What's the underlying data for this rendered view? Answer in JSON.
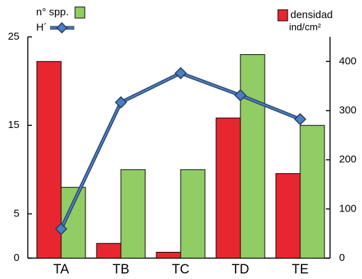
{
  "chart_data": {
    "type": "bar",
    "categories": [
      "TA",
      "TB",
      "TC",
      "TD",
      "TE"
    ],
    "series": [
      {
        "name": "densidad",
        "color": "#e8262f",
        "axis": "y2",
        "kind": "bar",
        "values": [
          400,
          30,
          12,
          285,
          172
        ]
      },
      {
        "name": "n° spp.",
        "color": "#92cc65",
        "axis": "y",
        "kind": "bar",
        "values": [
          8,
          10,
          10,
          23,
          15
        ]
      },
      {
        "name": "H´",
        "color": "#4a7fc1",
        "axis": "y",
        "kind": "line",
        "values": [
          3.3,
          17.6,
          20.9,
          18.4,
          15.7
        ]
      }
    ],
    "y2label": "ind/cm²",
    "ylim": [
      0,
      25
    ],
    "yticks": [
      0,
      5,
      15,
      25
    ],
    "y2lim": [
      0,
      450
    ],
    "y2ticks": [
      0,
      100,
      200,
      300,
      400
    ]
  }
}
